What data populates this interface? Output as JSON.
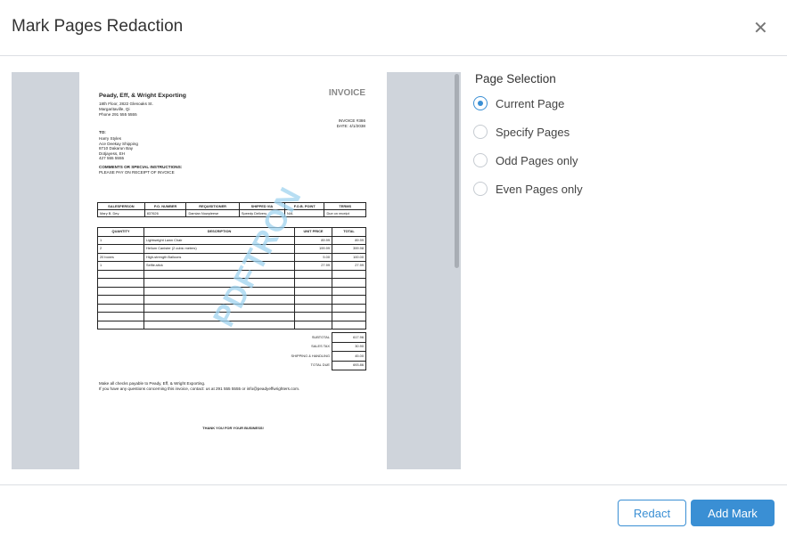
{
  "dialog": {
    "title": "Mark Pages Redaction",
    "close_icon": "close-icon"
  },
  "invoice": {
    "company": "Peady, Eff, & Wright Exporting",
    "address1": "18th Floor, 2822 Glenoaks St.",
    "address2": "Margaritaville, Qi",
    "phone": "Phone 291 555 5555",
    "heading": "INVOICE",
    "number": "INVOICE #386",
    "date": "DATE: 4/1/2038",
    "to_label": "TO:",
    "to": [
      "Harry Styles",
      "Ace Deekay Shipping",
      "8710 Dakarun Bay",
      "Dotjayess, EH",
      "427 555 5555"
    ],
    "comments_label": "COMMENTS OR SPECIAL INSTRUCTIONS:",
    "comments": "PLEASE PAY ON RECEIPT OF INVOICE",
    "info_headers": [
      "SALESPERSON",
      "P.O. NUMBER",
      "REQUISITIONER",
      "SHIPPED VIA",
      "F.O.B. POINT",
      "TERMS"
    ],
    "info_values": [
      "Mary B. Dey",
      "837626",
      "Damian Nowpleese",
      "Speedy Delivery",
      "N/A",
      "Due on receipt"
    ],
    "item_headers": [
      "QUANTITY",
      "DESCRIPTION",
      "UNIT PRICE",
      "TOTAL"
    ],
    "items": [
      [
        "1",
        "Lightweight Lawn Chair",
        "89.99",
        "89.99"
      ],
      [
        "2",
        "Helium Canister (2 cubic meters)",
        "199.99",
        "399.98"
      ],
      [
        "20 boxes",
        "High-strength Balloons",
        "5.00",
        "100.00"
      ],
      [
        "1",
        "Selfie-stick",
        "27.99",
        "27.99"
      ]
    ],
    "totals": [
      [
        "SUBTOTAL",
        "617.96"
      ],
      [
        "SALES TAX",
        "30.90"
      ],
      [
        "SHIPPING & HANDLING",
        "45.00"
      ],
      [
        "TOTAL DUE",
        "693.86"
      ]
    ],
    "note1": "Make all checks payable to Peady, Eff, & Wright Exporting.",
    "note2": "If you have any questions concerning this invoice, contact: us at 291 555 5555 or info@peadyeffwrighters.com.",
    "thanks": "THANK YOU FOR YOUR BUSINESS!",
    "watermark": "PDFTRON"
  },
  "page_selection": {
    "heading": "Page Selection",
    "options": [
      {
        "label": "Current Page",
        "selected": true
      },
      {
        "label": "Specify Pages",
        "selected": false
      },
      {
        "label": "Odd Pages only",
        "selected": false
      },
      {
        "label": "Even Pages only",
        "selected": false
      }
    ]
  },
  "footer": {
    "redact_label": "Redact",
    "add_mark_label": "Add Mark"
  },
  "colors": {
    "accent": "#3a8fd4"
  }
}
